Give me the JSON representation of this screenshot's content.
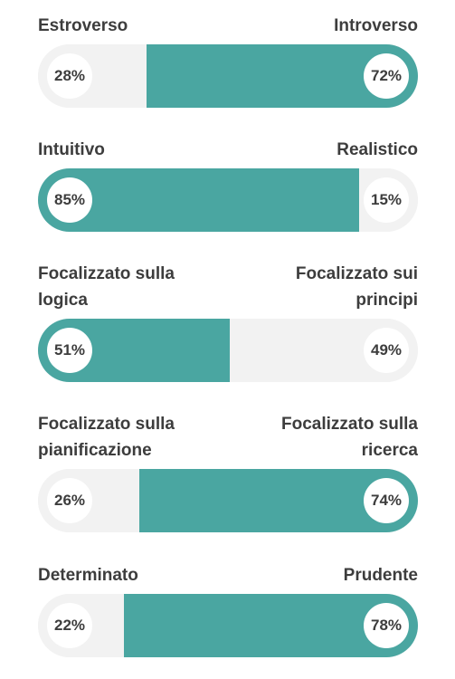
{
  "traits": [
    {
      "left_label": "Estroverso",
      "right_label": "Introverso",
      "left_percent": "28%",
      "right_percent": "72%",
      "left_value": 28,
      "right_value": 72,
      "dominant": "right"
    },
    {
      "left_label": "Intuitivo",
      "right_label": "Realistico",
      "left_percent": "85%",
      "right_percent": "15%",
      "left_value": 85,
      "right_value": 15,
      "dominant": "left"
    },
    {
      "left_label": "Focalizzato sulla logica",
      "right_label": "Focalizzato sui principi",
      "left_percent": "51%",
      "right_percent": "49%",
      "left_value": 51,
      "right_value": 49,
      "dominant": "left"
    },
    {
      "left_label": "Focalizzato sulla pianificazione",
      "right_label": "Focalizzato sulla ricerca",
      "left_percent": "26%",
      "right_percent": "74%",
      "left_value": 26,
      "right_value": 74,
      "dominant": "right"
    },
    {
      "left_label": "Determinato",
      "right_label": "Prudente",
      "left_percent": "22%",
      "right_percent": "78%",
      "left_value": 22,
      "right_value": 78,
      "dominant": "right"
    }
  ],
  "colors": {
    "accent": "#4aa6a1",
    "track": "#f2f2f2",
    "text": "#3d3d3d"
  }
}
